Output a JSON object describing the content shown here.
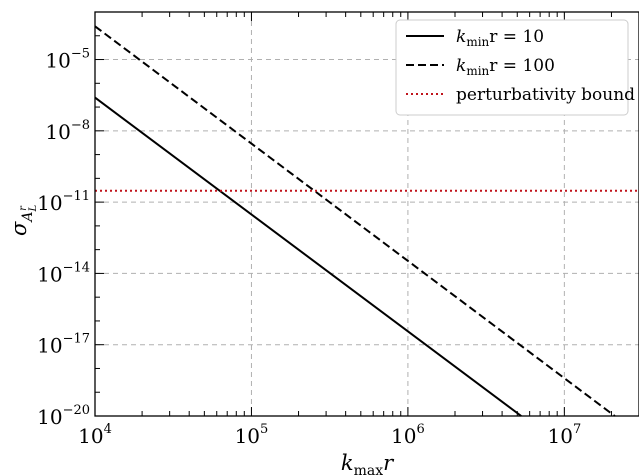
{
  "chart_data": {
    "type": "line",
    "x_scale": "log",
    "y_scale": "log",
    "xlim": [
      10000,
      30000000
    ],
    "ylim": [
      1e-20,
      0.001
    ],
    "grid": true,
    "legend_position": "top-right",
    "xlabel": {
      "main": "k",
      "sub": "max",
      "tail": "r"
    },
    "ylabel": {
      "main": "σ",
      "sub": "A",
      "subsub": "L",
      "subsup": "r"
    },
    "x_ticks": [
      {
        "value": 10000,
        "base": "10",
        "exp": "4"
      },
      {
        "value": 100000,
        "base": "10",
        "exp": "5"
      },
      {
        "value": 1000000,
        "base": "10",
        "exp": "6"
      },
      {
        "value": 10000000,
        "base": "10",
        "exp": "7"
      }
    ],
    "y_ticks": [
      {
        "value": 1e-20,
        "base": "10",
        "exp": "−20"
      },
      {
        "value": 1e-17,
        "base": "10",
        "exp": "−17"
      },
      {
        "value": 1e-14,
        "base": "10",
        "exp": "−14"
      },
      {
        "value": 1e-11,
        "base": "10",
        "exp": "−11"
      },
      {
        "value": 1e-08,
        "base": "10",
        "exp": "−8"
      },
      {
        "value": 1e-05,
        "base": "10",
        "exp": "−5"
      }
    ],
    "series": [
      {
        "name": "k_min r = 10",
        "legend": {
          "main": "k",
          "sub": "min",
          "tail": "r = 10"
        },
        "style": "solid",
        "color": "#000000",
        "points": [
          [
            10000,
            2.5e-07
          ],
          [
            5300000,
            1e-20
          ]
        ]
      },
      {
        "name": "k_min r = 100",
        "legend": {
          "main": "k",
          "sub": "min",
          "tail": "r = 100"
        },
        "style": "dashed",
        "color": "#000000",
        "points": [
          [
            10000,
            0.00025
          ],
          [
            21000000,
            1e-20
          ]
        ]
      },
      {
        "name": "perturbativity bound",
        "legend": {
          "text": "perturbativity bound"
        },
        "style": "dotted",
        "color": "#c0141c",
        "points": [
          [
            10000,
            3e-11
          ],
          [
            30000000,
            3e-11
          ]
        ]
      }
    ]
  }
}
